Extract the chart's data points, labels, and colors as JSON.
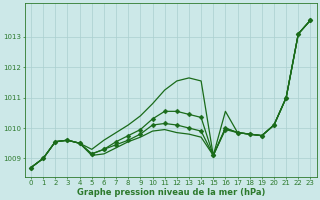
{
  "title": "Graphe pression niveau de la mer (hPa)",
  "bg_color": "#cce8e8",
  "grid_color": "#aacfcf",
  "line_color": "#1a6b1a",
  "xlim": [
    -0.5,
    23.5
  ],
  "ylim": [
    1008.4,
    1014.1
  ],
  "yticks": [
    1009,
    1010,
    1011,
    1012,
    1013
  ],
  "xticks": [
    0,
    1,
    2,
    3,
    4,
    5,
    6,
    7,
    8,
    9,
    10,
    11,
    12,
    13,
    14,
    15,
    16,
    17,
    18,
    19,
    20,
    21,
    22,
    23
  ],
  "series": [
    {
      "y": [
        1008.7,
        1009.0,
        1009.55,
        1009.6,
        1009.5,
        1009.1,
        1009.15,
        1009.35,
        1009.55,
        1009.7,
        1009.9,
        1009.95,
        1009.85,
        1009.8,
        1009.7,
        1009.1,
        1010.0,
        1009.85,
        1009.8,
        1009.75,
        1010.1,
        1011.0,
        1013.1,
        1013.55
      ],
      "marker": false,
      "lw": 0.9
    },
    {
      "y": [
        1008.7,
        1009.0,
        1009.55,
        1009.6,
        1009.5,
        1009.15,
        1009.3,
        1009.45,
        1009.6,
        1009.8,
        1010.1,
        1010.15,
        1010.1,
        1010.0,
        1009.9,
        1009.1,
        1009.95,
        1009.85,
        1009.8,
        1009.75,
        1010.1,
        1011.0,
        1013.1,
        1013.55
      ],
      "marker": true,
      "lw": 0.9
    },
    {
      "y": [
        1008.7,
        1009.0,
        1009.55,
        1009.6,
        1009.5,
        1009.15,
        1009.3,
        1009.55,
        1009.75,
        1009.95,
        1010.3,
        1010.55,
        1010.55,
        1010.45,
        1010.35,
        1009.1,
        1010.0,
        1009.85,
        1009.8,
        1009.75,
        1010.1,
        1011.0,
        1013.1,
        1013.55
      ],
      "marker": true,
      "lw": 0.9
    },
    {
      "y": [
        1008.7,
        1009.0,
        1009.55,
        1009.6,
        1009.5,
        1009.3,
        1009.6,
        1009.85,
        1010.1,
        1010.4,
        1010.8,
        1011.25,
        1011.55,
        1011.65,
        1011.55,
        1009.1,
        1010.55,
        1009.85,
        1009.8,
        1009.75,
        1010.1,
        1011.0,
        1013.1,
        1013.55
      ],
      "marker": false,
      "lw": 0.9
    }
  ],
  "marker_size": 2.5,
  "title_fontsize": 6,
  "tick_fontsize": 5,
  "spine_color": "#2d7a2d",
  "tick_color": "#2d7a2d"
}
